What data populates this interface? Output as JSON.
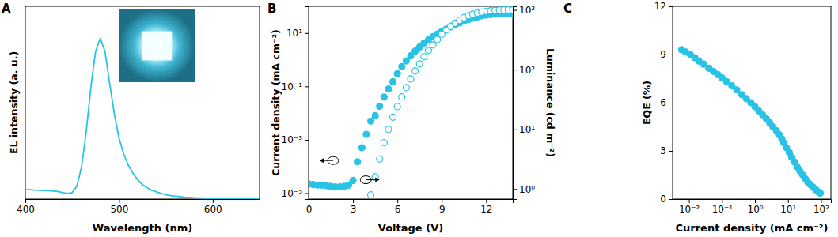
{
  "chart_data": [
    {
      "type": "line",
      "title": "A",
      "xlabel": "Wavelength (nm)",
      "ylabel": "EL intensity (a. u.)",
      "x": [
        400,
        405,
        410,
        415,
        420,
        425,
        430,
        435,
        440,
        445,
        450,
        455,
        460,
        465,
        470,
        475,
        480,
        485,
        490,
        495,
        500,
        505,
        510,
        515,
        520,
        525,
        530,
        535,
        540,
        545,
        550,
        555,
        560,
        565,
        570,
        575,
        580,
        585,
        590,
        595,
        600,
        605,
        610,
        615,
        620,
        625,
        630,
        635,
        640,
        645,
        650
      ],
      "series": [
        {
          "values": [
            0.06,
            0.058,
            0.056,
            0.055,
            0.053,
            0.052,
            0.05,
            0.047,
            0.04,
            0.035,
            0.04,
            0.08,
            0.2,
            0.42,
            0.7,
            0.92,
            1.0,
            0.92,
            0.72,
            0.53,
            0.38,
            0.28,
            0.21,
            0.16,
            0.12,
            0.09,
            0.07,
            0.055,
            0.045,
            0.035,
            0.028,
            0.022,
            0.018,
            0.015,
            0.012,
            0.01,
            0.008,
            0.007,
            0.006,
            0.005,
            0.004,
            0.004,
            0.003,
            0.003,
            0.003,
            0.002,
            0.002,
            0.002,
            0.002,
            0.002,
            0.002
          ],
          "color": "#29c3e5",
          "marker": "none",
          "line_style": "solid"
        }
      ],
      "xlim": [
        400,
        650
      ],
      "xticks": [
        400,
        500,
        600
      ],
      "ylim": [
        0,
        1.2
      ],
      "tick_labels": "x"
    },
    {
      "type": "scatter",
      "title": "B",
      "xlabel": "Voltage (V)",
      "ylabel": "Current density (mA cm⁻²)",
      "y2label": "Luminance (cd m⁻²)",
      "x": [
        0,
        0.3,
        0.6,
        0.9,
        1.2,
        1.5,
        1.8,
        2.1,
        2.4,
        2.7,
        3.0,
        3.3,
        3.6,
        3.9,
        4.2,
        4.5,
        4.8,
        5.1,
        5.4,
        5.7,
        6.0,
        6.3,
        6.6,
        6.9,
        7.2,
        7.5,
        7.8,
        8.1,
        8.4,
        8.7,
        9.0,
        9.3,
        9.6,
        9.9,
        10.2,
        10.5,
        10.8,
        11.1,
        11.4,
        11.7,
        12.0,
        12.3,
        12.6,
        12.9,
        13.2,
        13.5,
        13.8
      ],
      "series": [
        {
          "values": [
            2.2e-05,
            2.1e-05,
            2e-05,
            2e-05,
            1.9e-05,
            1.8e-05,
            1.7e-05,
            1.7e-05,
            1.8e-05,
            2e-05,
            3e-05,
            0.00015,
            0.0005,
            0.0016,
            0.005,
            0.008,
            0.018,
            0.04,
            0.08,
            0.15,
            0.3,
            0.55,
            0.9,
            1.4,
            2.1,
            3.0,
            4.2,
            5.6,
            7.3,
            9.2,
            11.5,
            14,
            17,
            20,
            24,
            28,
            32,
            36,
            40,
            44,
            47,
            49,
            51,
            52,
            53,
            53,
            53
          ],
          "color": "#29c3e5",
          "marker": "filled-circle"
        },
        {
          "values": [
            null,
            null,
            null,
            null,
            null,
            null,
            null,
            null,
            null,
            null,
            null,
            null,
            null,
            null,
            0.8,
            1.6,
            3.2,
            6,
            10,
            16,
            24,
            35,
            50,
            70,
            95,
            125,
            165,
            210,
            260,
            320,
            390,
            460,
            530,
            600,
            670,
            740,
            800,
            850,
            890,
            920,
            950,
            970,
            985,
            995,
            1000,
            1000,
            1000
          ],
          "color": "#29c3e5",
          "marker": "open-circle",
          "axis": "y2"
        }
      ],
      "xlim": [
        0,
        13.8
      ],
      "xticks": [
        0,
        3,
        6,
        9,
        12
      ],
      "ylim": [
        6e-06,
        100
      ],
      "yticks": [
        {
          "value": 1e-05,
          "label": "10⁻⁵"
        },
        {
          "value": 0.001,
          "label": "10⁻³"
        },
        {
          "value": 0.1,
          "label": "10⁻¹"
        },
        {
          "value": 10,
          "label": "10¹"
        }
      ],
      "y2lim": [
        0.68,
        1150
      ],
      "y2ticks": [
        {
          "value": 1,
          "label": "10⁰"
        },
        {
          "value": 10,
          "label": "10¹"
        },
        {
          "value": 100,
          "label": "10²"
        },
        {
          "value": 1000,
          "label": "10³"
        }
      ],
      "log": "y"
    },
    {
      "type": "line",
      "title": "C",
      "xlabel": "Current density (mA cm⁻²)",
      "ylabel": "EQE (%)",
      "x": [
        0.006,
        0.008,
        0.011,
        0.015,
        0.02,
        0.028,
        0.04,
        0.055,
        0.075,
        0.1,
        0.14,
        0.2,
        0.28,
        0.4,
        0.55,
        0.75,
        1.0,
        1.3,
        1.7,
        2.2,
        2.8,
        3.5,
        4.5,
        5.5,
        6.5,
        7.5,
        9,
        11,
        13,
        16,
        19,
        23,
        28,
        34,
        40,
        48,
        57,
        68,
        80,
        95
      ],
      "series": [
        {
          "values": [
            9.3,
            9.15,
            9.0,
            8.8,
            8.6,
            8.4,
            8.15,
            7.95,
            7.75,
            7.55,
            7.3,
            7.05,
            6.8,
            6.5,
            6.25,
            6.0,
            5.75,
            5.5,
            5.25,
            5.0,
            4.75,
            4.5,
            4.25,
            4.0,
            3.75,
            3.5,
            3.2,
            2.9,
            2.6,
            2.3,
            2.0,
            1.75,
            1.5,
            1.25,
            1.05,
            0.9,
            0.75,
            0.6,
            0.47,
            0.37
          ],
          "color": "#29c3e5",
          "marker": "filled-circle",
          "line_style": "solid"
        }
      ],
      "xlim": [
        0.0032,
        200
      ],
      "xticks": [
        {
          "value": 0.01,
          "label": "10⁻²"
        },
        {
          "value": 0.1,
          "label": "10⁻¹"
        },
        {
          "value": 1,
          "label": "10⁰"
        },
        {
          "value": 10,
          "label": "10¹"
        },
        {
          "value": 100,
          "label": "10²"
        }
      ],
      "ylim": [
        0,
        12
      ],
      "yticks": [
        0,
        3,
        6,
        9,
        12
      ],
      "log": "x"
    }
  ]
}
